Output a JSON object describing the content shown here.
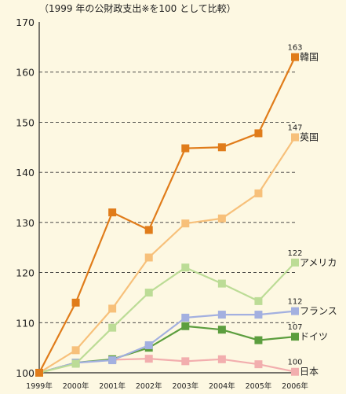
{
  "chart_data": {
    "type": "line",
    "subtitle": "（1999 年の公財政支出※を100 として比較）",
    "x": [
      "1999年",
      "2000年",
      "2001年",
      "2002年",
      "2003年",
      "2004年",
      "2005年",
      "2006年"
    ],
    "ylim": [
      100,
      170
    ],
    "yticks": [
      100,
      110,
      120,
      130,
      140,
      150,
      160,
      170
    ],
    "grid": "horizontal dashed at 110–160",
    "series": [
      {
        "name": "韓国",
        "color": "#e07c1a",
        "values": [
          100,
          114,
          132,
          128.5,
          144.8,
          145,
          147.8,
          163
        ],
        "end_label": "163"
      },
      {
        "name": "英国",
        "color": "#f7c07a",
        "values": [
          100,
          104.5,
          112.8,
          123,
          129.8,
          130.8,
          135.8,
          147
        ],
        "end_label": "147"
      },
      {
        "name": "アメリカ",
        "color": "#bcdc96",
        "values": [
          100,
          101.8,
          109,
          116,
          121,
          117.8,
          114.3,
          122
        ],
        "end_label": "122"
      },
      {
        "name": "フランス",
        "color": "#a3b0e0",
        "values": [
          100,
          102,
          102.5,
          105.5,
          111,
          111.6,
          111.6,
          112.3
        ],
        "end_label": "112"
      },
      {
        "name": "ドイツ",
        "color": "#5c9e3e",
        "values": [
          100,
          102,
          102.7,
          105,
          109.3,
          108.6,
          106.5,
          107.2
        ],
        "end_label": "107"
      },
      {
        "name": "日本",
        "color": "#f2aeae",
        "values": [
          100,
          102,
          102.6,
          102.8,
          102.3,
          102.7,
          101.7,
          100.2
        ],
        "end_label": "100"
      }
    ]
  }
}
